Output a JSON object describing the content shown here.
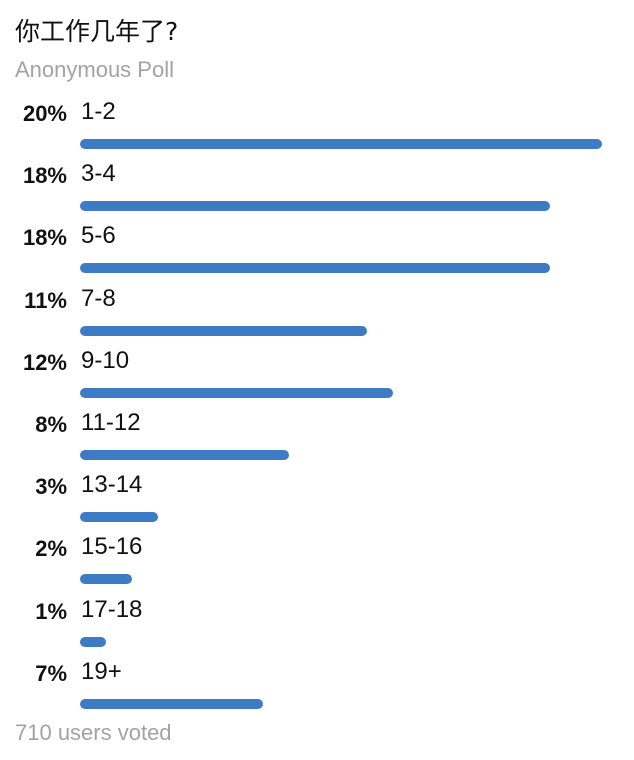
{
  "poll": {
    "title": "你工作几年了?",
    "subtitle": "Anonymous Poll",
    "accent_color": "#3d7cc5",
    "options": [
      {
        "label": "1-2",
        "percent_text": "20%",
        "fill_fraction": 1.0
      },
      {
        "label": "3-4",
        "percent_text": "18%",
        "fill_fraction": 0.9
      },
      {
        "label": "5-6",
        "percent_text": "18%",
        "fill_fraction": 0.9
      },
      {
        "label": "7-8",
        "percent_text": "11%",
        "fill_fraction": 0.55
      },
      {
        "label": "9-10",
        "percent_text": "12%",
        "fill_fraction": 0.6
      },
      {
        "label": "11-12",
        "percent_text": "8%",
        "fill_fraction": 0.4
      },
      {
        "label": "13-14",
        "percent_text": "3%",
        "fill_fraction": 0.15
      },
      {
        "label": "15-16",
        "percent_text": "2%",
        "fill_fraction": 0.1
      },
      {
        "label": "17-18",
        "percent_text": "1%",
        "fill_fraction": 0.05
      },
      {
        "label": "19+",
        "percent_text": "7%",
        "fill_fraction": 0.35
      }
    ],
    "footer": "710 users voted"
  }
}
